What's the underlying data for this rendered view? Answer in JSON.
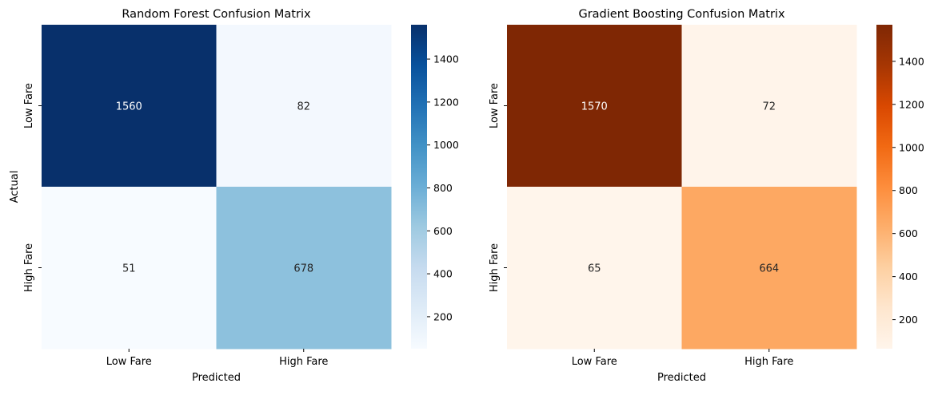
{
  "chart_data": [
    {
      "type": "heatmap",
      "title": "Random Forest Confusion Matrix",
      "xlabel": "Predicted",
      "ylabel": "Actual",
      "x_categories": [
        "Low Fare",
        "High Fare"
      ],
      "y_categories": [
        "Low Fare",
        "High Fare"
      ],
      "values": [
        [
          1560,
          82
        ],
        [
          51,
          678
        ]
      ],
      "colormap": "Blues",
      "color_low": "#f7fbff",
      "color_high": "#08306b",
      "colorbar_ticks": [
        "200",
        "400",
        "600",
        "800",
        "1000",
        "1200",
        "1400"
      ]
    },
    {
      "type": "heatmap",
      "title": "Gradient Boosting Confusion Matrix",
      "xlabel": "Predicted",
      "ylabel": "",
      "x_categories": [
        "Low Fare",
        "High Fare"
      ],
      "y_categories": [
        "Low Fare",
        "High Fare"
      ],
      "values": [
        [
          1570,
          72
        ],
        [
          65,
          664
        ]
      ],
      "colormap": "Oranges",
      "color_low": "#fff5eb",
      "color_high": "#7f2704",
      "colorbar_ticks": [
        "200",
        "400",
        "600",
        "800",
        "1000",
        "1200",
        "1400"
      ]
    }
  ]
}
